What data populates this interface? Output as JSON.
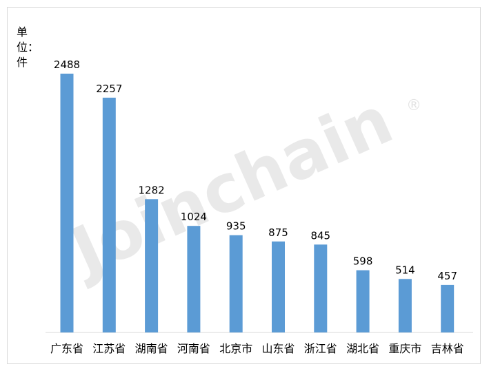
{
  "unit_label": "单位：件",
  "watermark": "Joinchain",
  "watermark_mark": "®",
  "chart_data": {
    "type": "bar",
    "title": "",
    "xlabel": "",
    "ylabel": "单位：件",
    "categories": [
      "广东省",
      "江苏省",
      "湖南省",
      "河南省",
      "北京市",
      "山东省",
      "浙江省",
      "湖北省",
      "重庆市",
      "吉林省"
    ],
    "values": [
      2488,
      2257,
      1282,
      1024,
      935,
      875,
      845,
      598,
      514,
      457
    ],
    "ylim": [
      0,
      2488
    ],
    "grid": false,
    "legend": "none",
    "bar_color": "#5b9bd5",
    "axis_color": "#d9d9d9"
  }
}
